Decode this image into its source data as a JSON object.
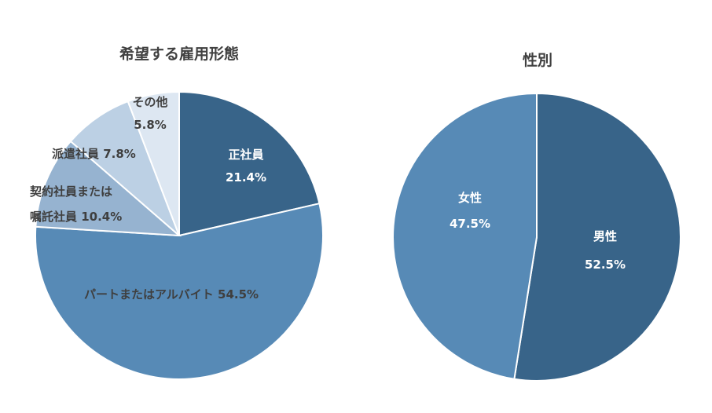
{
  "colors": {
    "dark": "#386489",
    "mid": "#578ab6",
    "light1": "#96b3d0",
    "light2": "#bcd0e4",
    "light3": "#dde7f2",
    "white_text": "#ffffff",
    "dark_text": "#3f3f3f"
  },
  "chart_data": [
    {
      "type": "pie",
      "title": "希望する雇用形態",
      "slices": [
        {
          "name": "正社員",
          "value": 21.4,
          "label_line1": "正社員",
          "label_line2": "21.4%",
          "color": "#386489",
          "text_color": "#ffffff"
        },
        {
          "name": "パートまたはアルバイト",
          "value": 54.5,
          "label_line1": "パートまたはアルバイト 54.5%",
          "label_line2": "",
          "color": "#578ab6",
          "text_color": "#3f3f3f"
        },
        {
          "name": "契約社員または嘱託社員",
          "value": 10.4,
          "label_line1": "契約社員または",
          "label_line2": "嘱託社員 10.4%",
          "color": "#96b3d0",
          "text_color": "#3f3f3f"
        },
        {
          "name": "派遣社員",
          "value": 7.8,
          "label_line1": "派遣社員 7.8%",
          "label_line2": "",
          "color": "#bcd0e4",
          "text_color": "#3f3f3f"
        },
        {
          "name": "その他",
          "value": 5.8,
          "label_line1": "その他",
          "label_line2": "5.8%",
          "color": "#dde7f2",
          "text_color": "#3f3f3f"
        }
      ]
    },
    {
      "type": "pie",
      "title": "性別",
      "slices": [
        {
          "name": "男性",
          "value": 52.5,
          "label_line1": "男性",
          "label_line2": "52.5%",
          "color": "#386489",
          "text_color": "#ffffff"
        },
        {
          "name": "女性",
          "value": 47.5,
          "label_line1": "女性",
          "label_line2": "47.5%",
          "color": "#578ab6",
          "text_color": "#ffffff"
        }
      ]
    }
  ]
}
